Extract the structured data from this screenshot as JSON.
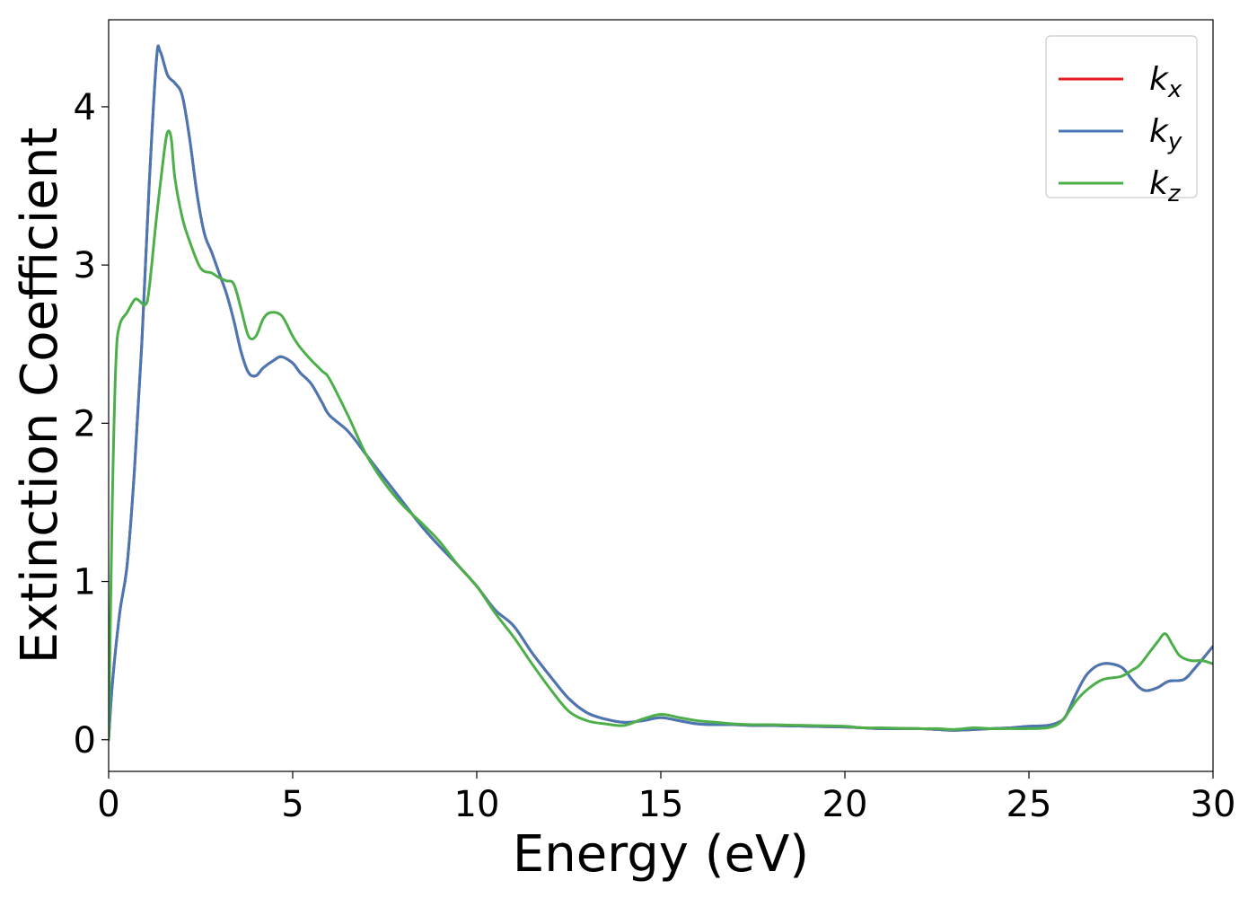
{
  "chart_data": {
    "type": "line",
    "xlabel": "Energy (eV)",
    "ylabel": "Extinction Coefficient",
    "xlim": [
      0,
      30
    ],
    "ylim": [
      -0.2,
      4.55
    ],
    "xticks": [
      0,
      5,
      10,
      15,
      20,
      25,
      30
    ],
    "yticks": [
      0,
      1,
      2,
      3,
      4
    ],
    "grid": false,
    "legend_position": "top-right",
    "series": [
      {
        "name": "k_x",
        "name_base": "k",
        "name_sub": "x",
        "color": "#e41a1c",
        "points": [
          [
            0,
            0
          ],
          [
            0.1,
            0.35
          ],
          [
            0.3,
            0.8
          ],
          [
            0.5,
            1.1
          ],
          [
            0.7,
            1.7
          ],
          [
            0.9,
            2.5
          ],
          [
            1.1,
            3.5
          ],
          [
            1.3,
            4.3
          ],
          [
            1.4,
            4.35
          ],
          [
            1.6,
            4.2
          ],
          [
            1.8,
            4.15
          ],
          [
            2.0,
            4.07
          ],
          [
            2.2,
            3.8
          ],
          [
            2.4,
            3.45
          ],
          [
            2.6,
            3.2
          ],
          [
            2.8,
            3.08
          ],
          [
            3.0,
            2.95
          ],
          [
            3.2,
            2.82
          ],
          [
            3.4,
            2.65
          ],
          [
            3.6,
            2.45
          ],
          [
            3.8,
            2.32
          ],
          [
            4.0,
            2.3
          ],
          [
            4.2,
            2.35
          ],
          [
            4.5,
            2.4
          ],
          [
            4.7,
            2.42
          ],
          [
            5.0,
            2.38
          ],
          [
            5.2,
            2.32
          ],
          [
            5.5,
            2.25
          ],
          [
            5.8,
            2.13
          ],
          [
            6.0,
            2.05
          ],
          [
            6.5,
            1.95
          ],
          [
            7.0,
            1.8
          ],
          [
            7.5,
            1.65
          ],
          [
            8.0,
            1.5
          ],
          [
            8.5,
            1.35
          ],
          [
            9.0,
            1.22
          ],
          [
            9.5,
            1.1
          ],
          [
            10.0,
            0.97
          ],
          [
            10.5,
            0.82
          ],
          [
            11.0,
            0.72
          ],
          [
            11.5,
            0.55
          ],
          [
            12.0,
            0.4
          ],
          [
            12.5,
            0.26
          ],
          [
            13.0,
            0.17
          ],
          [
            13.5,
            0.13
          ],
          [
            14.0,
            0.11
          ],
          [
            14.5,
            0.12
          ],
          [
            15.0,
            0.14
          ],
          [
            15.5,
            0.12
          ],
          [
            16.0,
            0.1
          ],
          [
            16.5,
            0.095
          ],
          [
            17.0,
            0.095
          ],
          [
            17.5,
            0.09
          ],
          [
            18.0,
            0.09
          ],
          [
            19.0,
            0.085
          ],
          [
            20.0,
            0.08
          ],
          [
            20.5,
            0.075
          ],
          [
            21.0,
            0.07
          ],
          [
            22.0,
            0.07
          ],
          [
            22.5,
            0.065
          ],
          [
            23.0,
            0.06
          ],
          [
            24.0,
            0.07
          ],
          [
            24.5,
            0.075
          ],
          [
            25.0,
            0.085
          ],
          [
            25.5,
            0.09
          ],
          [
            25.8,
            0.11
          ],
          [
            26.0,
            0.15
          ],
          [
            26.3,
            0.3
          ],
          [
            26.6,
            0.42
          ],
          [
            27.0,
            0.48
          ],
          [
            27.5,
            0.46
          ],
          [
            27.8,
            0.38
          ],
          [
            28.0,
            0.33
          ],
          [
            28.2,
            0.31
          ],
          [
            28.5,
            0.33
          ],
          [
            28.8,
            0.37
          ],
          [
            29.2,
            0.38
          ],
          [
            29.5,
            0.45
          ],
          [
            30.0,
            0.59
          ]
        ]
      },
      {
        "name": "k_y",
        "name_base": "k",
        "name_sub": "y",
        "color": "#4878b4",
        "points": [
          [
            0,
            0
          ],
          [
            0.1,
            0.35
          ],
          [
            0.3,
            0.8
          ],
          [
            0.5,
            1.1
          ],
          [
            0.7,
            1.7
          ],
          [
            0.9,
            2.5
          ],
          [
            1.1,
            3.5
          ],
          [
            1.3,
            4.3
          ],
          [
            1.4,
            4.35
          ],
          [
            1.6,
            4.2
          ],
          [
            1.8,
            4.15
          ],
          [
            2.0,
            4.07
          ],
          [
            2.2,
            3.8
          ],
          [
            2.4,
            3.45
          ],
          [
            2.6,
            3.2
          ],
          [
            2.8,
            3.08
          ],
          [
            3.0,
            2.95
          ],
          [
            3.2,
            2.82
          ],
          [
            3.4,
            2.65
          ],
          [
            3.6,
            2.45
          ],
          [
            3.8,
            2.32
          ],
          [
            4.0,
            2.3
          ],
          [
            4.2,
            2.35
          ],
          [
            4.5,
            2.4
          ],
          [
            4.7,
            2.42
          ],
          [
            5.0,
            2.38
          ],
          [
            5.2,
            2.32
          ],
          [
            5.5,
            2.25
          ],
          [
            5.8,
            2.13
          ],
          [
            6.0,
            2.05
          ],
          [
            6.5,
            1.95
          ],
          [
            7.0,
            1.8
          ],
          [
            7.5,
            1.65
          ],
          [
            8.0,
            1.5
          ],
          [
            8.5,
            1.35
          ],
          [
            9.0,
            1.22
          ],
          [
            9.5,
            1.1
          ],
          [
            10.0,
            0.97
          ],
          [
            10.5,
            0.82
          ],
          [
            11.0,
            0.72
          ],
          [
            11.5,
            0.55
          ],
          [
            12.0,
            0.4
          ],
          [
            12.5,
            0.26
          ],
          [
            13.0,
            0.17
          ],
          [
            13.5,
            0.13
          ],
          [
            14.0,
            0.11
          ],
          [
            14.5,
            0.12
          ],
          [
            15.0,
            0.14
          ],
          [
            15.5,
            0.12
          ],
          [
            16.0,
            0.1
          ],
          [
            16.5,
            0.095
          ],
          [
            17.0,
            0.095
          ],
          [
            17.5,
            0.09
          ],
          [
            18.0,
            0.09
          ],
          [
            19.0,
            0.085
          ],
          [
            20.0,
            0.08
          ],
          [
            20.5,
            0.075
          ],
          [
            21.0,
            0.07
          ],
          [
            22.0,
            0.07
          ],
          [
            22.5,
            0.065
          ],
          [
            23.0,
            0.06
          ],
          [
            24.0,
            0.07
          ],
          [
            24.5,
            0.075
          ],
          [
            25.0,
            0.085
          ],
          [
            25.5,
            0.09
          ],
          [
            25.8,
            0.11
          ],
          [
            26.0,
            0.15
          ],
          [
            26.3,
            0.3
          ],
          [
            26.6,
            0.42
          ],
          [
            27.0,
            0.48
          ],
          [
            27.5,
            0.46
          ],
          [
            27.8,
            0.38
          ],
          [
            28.0,
            0.33
          ],
          [
            28.2,
            0.31
          ],
          [
            28.5,
            0.33
          ],
          [
            28.8,
            0.37
          ],
          [
            29.2,
            0.38
          ],
          [
            29.5,
            0.45
          ],
          [
            30.0,
            0.59
          ]
        ]
      },
      {
        "name": "k_z",
        "name_base": "k",
        "name_sub": "z",
        "color": "#4daf4a",
        "points": [
          [
            0,
            0
          ],
          [
            0.1,
            1.5
          ],
          [
            0.2,
            2.4
          ],
          [
            0.3,
            2.62
          ],
          [
            0.5,
            2.7
          ],
          [
            0.7,
            2.78
          ],
          [
            0.8,
            2.78
          ],
          [
            1.0,
            2.75
          ],
          [
            1.1,
            2.85
          ],
          [
            1.3,
            3.3
          ],
          [
            1.5,
            3.7
          ],
          [
            1.6,
            3.84
          ],
          [
            1.7,
            3.8
          ],
          [
            1.8,
            3.55
          ],
          [
            2.0,
            3.3
          ],
          [
            2.2,
            3.15
          ],
          [
            2.5,
            2.98
          ],
          [
            2.8,
            2.95
          ],
          [
            3.0,
            2.92
          ],
          [
            3.2,
            2.9
          ],
          [
            3.4,
            2.88
          ],
          [
            3.6,
            2.72
          ],
          [
            3.8,
            2.55
          ],
          [
            4.0,
            2.55
          ],
          [
            4.2,
            2.66
          ],
          [
            4.4,
            2.7
          ],
          [
            4.7,
            2.68
          ],
          [
            5.0,
            2.55
          ],
          [
            5.2,
            2.48
          ],
          [
            5.5,
            2.4
          ],
          [
            5.8,
            2.33
          ],
          [
            6.0,
            2.28
          ],
          [
            6.5,
            2.05
          ],
          [
            7.0,
            1.8
          ],
          [
            7.5,
            1.62
          ],
          [
            8.0,
            1.48
          ],
          [
            8.5,
            1.37
          ],
          [
            9.0,
            1.25
          ],
          [
            9.5,
            1.1
          ],
          [
            10.0,
            0.97
          ],
          [
            10.5,
            0.8
          ],
          [
            11.0,
            0.65
          ],
          [
            11.5,
            0.48
          ],
          [
            12.0,
            0.32
          ],
          [
            12.5,
            0.18
          ],
          [
            13.0,
            0.12
          ],
          [
            13.5,
            0.1
          ],
          [
            14.0,
            0.09
          ],
          [
            14.5,
            0.13
          ],
          [
            15.0,
            0.16
          ],
          [
            15.5,
            0.14
          ],
          [
            16.0,
            0.12
          ],
          [
            16.5,
            0.11
          ],
          [
            17.0,
            0.1
          ],
          [
            17.5,
            0.095
          ],
          [
            18.0,
            0.095
          ],
          [
            19.0,
            0.09
          ],
          [
            20.0,
            0.085
          ],
          [
            20.5,
            0.075
          ],
          [
            21.0,
            0.075
          ],
          [
            22.0,
            0.07
          ],
          [
            22.5,
            0.07
          ],
          [
            23.0,
            0.065
          ],
          [
            23.5,
            0.075
          ],
          [
            24.0,
            0.07
          ],
          [
            24.5,
            0.07
          ],
          [
            25.0,
            0.07
          ],
          [
            25.5,
            0.075
          ],
          [
            25.8,
            0.1
          ],
          [
            26.0,
            0.15
          ],
          [
            26.3,
            0.25
          ],
          [
            26.6,
            0.32
          ],
          [
            27.0,
            0.38
          ],
          [
            27.5,
            0.4
          ],
          [
            27.8,
            0.44
          ],
          [
            28.0,
            0.47
          ],
          [
            28.3,
            0.56
          ],
          [
            28.5,
            0.62
          ],
          [
            28.7,
            0.67
          ],
          [
            28.9,
            0.6
          ],
          [
            29.1,
            0.53
          ],
          [
            29.4,
            0.5
          ],
          [
            29.7,
            0.5
          ],
          [
            30.0,
            0.48
          ]
        ]
      }
    ]
  }
}
